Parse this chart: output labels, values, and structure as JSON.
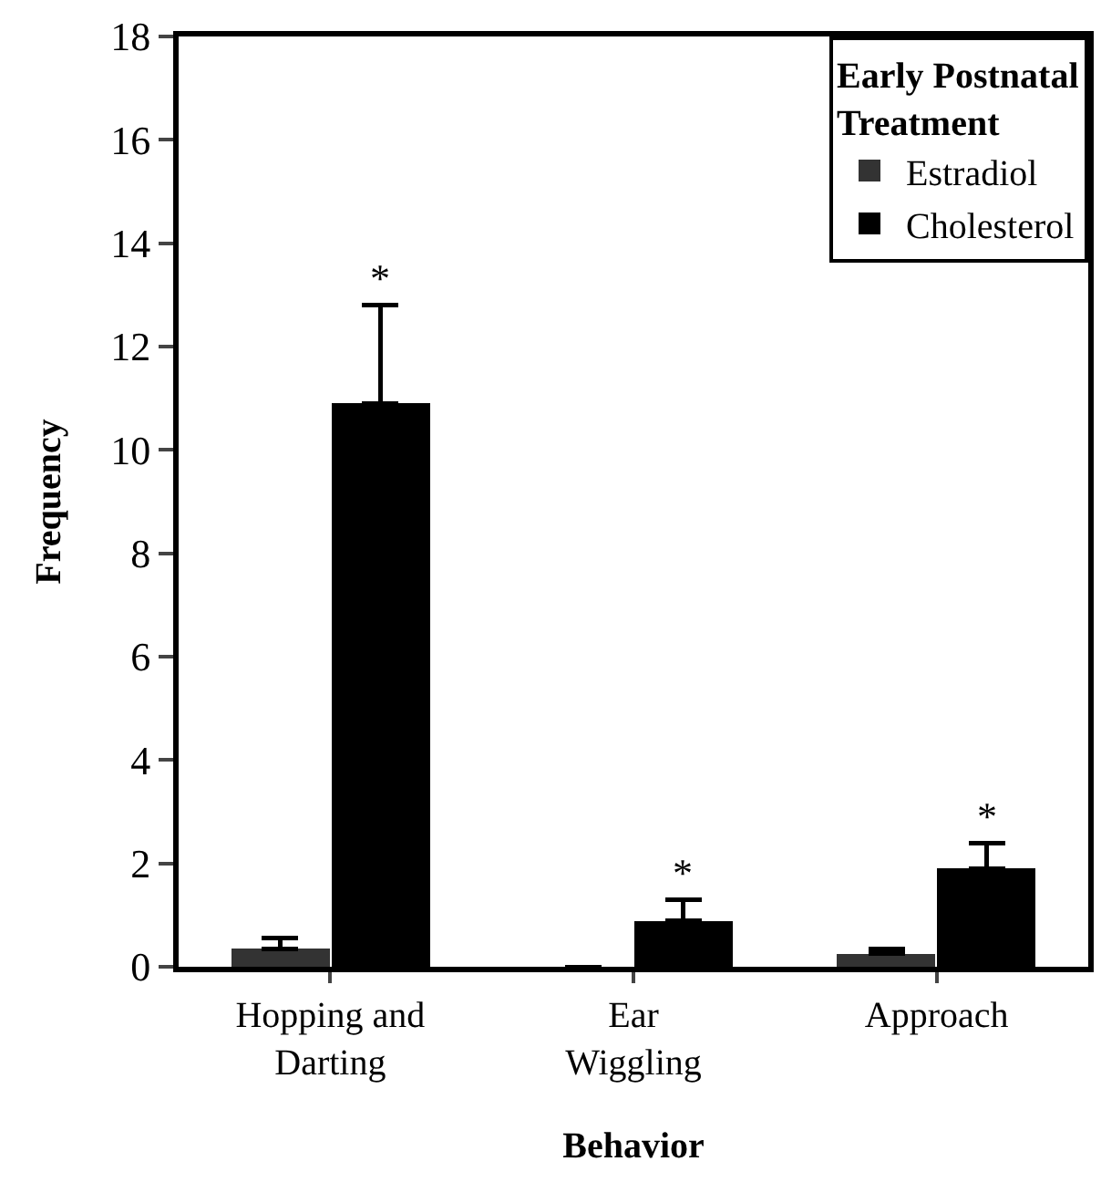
{
  "chart_data": {
    "type": "bar",
    "xlabel": "Behavior",
    "ylabel": "Frequency",
    "legend_title": "Early Postnatal\nTreatment",
    "categories": [
      "Hopping and\nDarting",
      "Ear\nWiggling",
      "Approach"
    ],
    "series": [
      {
        "name": "Estradiol",
        "color": "#333333",
        "values": [
          0.35,
          0,
          0.25
        ],
        "errors": [
          0.2,
          null,
          0.1
        ]
      },
      {
        "name": "Cholesterol",
        "color": "#000000",
        "values": [
          10.9,
          0.9,
          1.9
        ],
        "errors": [
          1.9,
          0.4,
          0.5
        ]
      }
    ],
    "annotations": [
      {
        "text": "*",
        "x": "Hopping and\nDarting",
        "y": 10.9
      },
      {
        "text": "*",
        "x": "Ear\nWiggling",
        "y": 0.9
      },
      {
        "text": "*",
        "x": "Approach",
        "y": 1.9
      }
    ],
    "ylim": [
      0,
      18
    ],
    "yticks": [
      0,
      2,
      4,
      6,
      8,
      10,
      12,
      14,
      16,
      18
    ],
    "grid": false,
    "legend": "top right"
  }
}
